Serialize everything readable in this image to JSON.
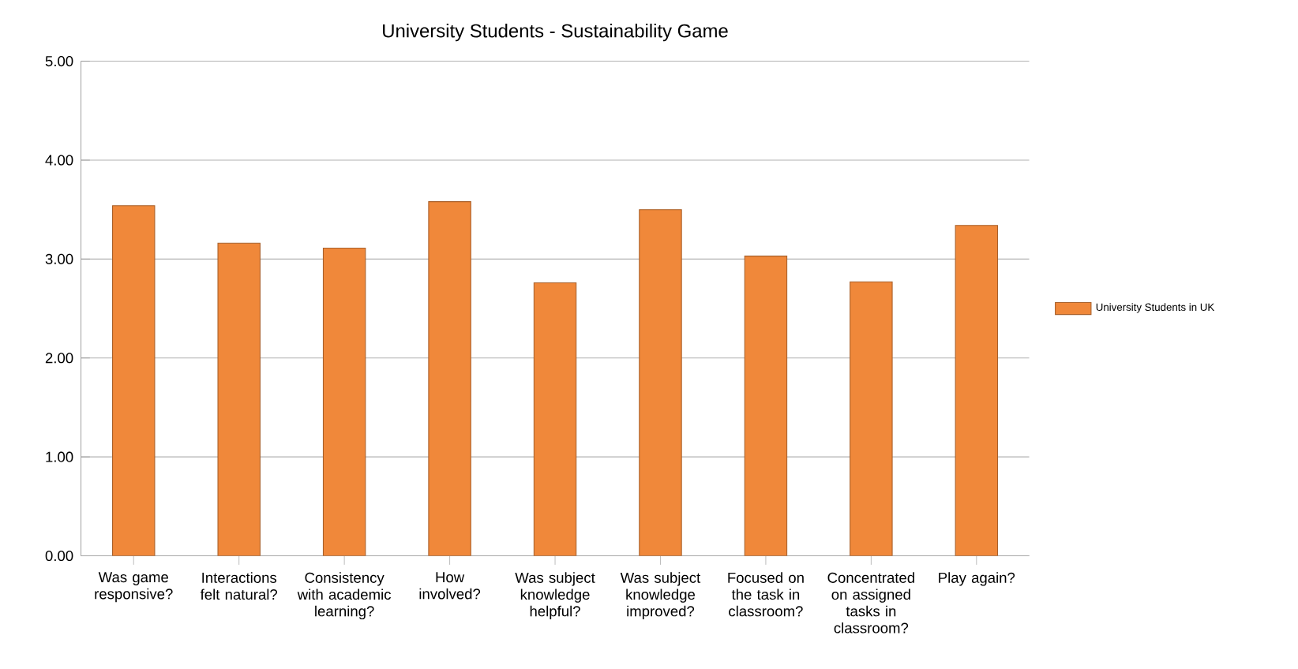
{
  "chart_data": {
    "type": "bar",
    "title": "University Students - Sustainability Game",
    "categories": [
      "Was game responsive?",
      "Interactions felt natural?",
      "Consistency with academic learning?",
      "How involved?",
      "Was subject knowledge helpful?",
      "Was subject knowledge improved?",
      "Focused on the task in classroom?",
      "Concentrated on assigned tasks in classroom?",
      "Play again?"
    ],
    "series": [
      {
        "name": "University Students in UK",
        "color": "#f0883a",
        "values": [
          3.54,
          3.16,
          3.11,
          3.58,
          2.76,
          3.5,
          3.03,
          2.77,
          3.34
        ]
      }
    ],
    "ylim": [
      0,
      5
    ],
    "yticks": [
      {
        "value": 0,
        "label": "0.00"
      },
      {
        "value": 1,
        "label": "1.00"
      },
      {
        "value": 2,
        "label": "2.00"
      },
      {
        "value": 3,
        "label": "3.00"
      },
      {
        "value": 4,
        "label": "4.00"
      },
      {
        "value": 5,
        "label": "5.00"
      }
    ],
    "grid": "y",
    "legend": "right"
  }
}
